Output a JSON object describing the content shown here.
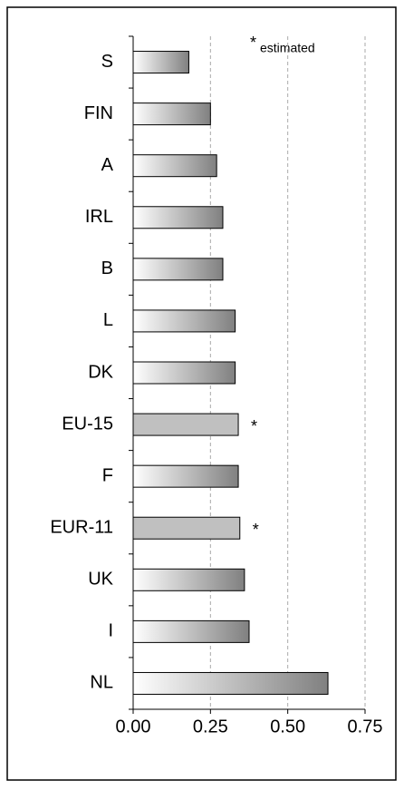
{
  "chart_data": {
    "type": "barh",
    "categories": [
      "S",
      "FIN",
      "A",
      "IRL",
      "B",
      "L",
      "DK",
      "EU-15",
      "F",
      "EUR-11",
      "UK",
      "I",
      "NL"
    ],
    "values": [
      0.18,
      0.25,
      0.27,
      0.29,
      0.29,
      0.33,
      0.33,
      0.34,
      0.34,
      0.345,
      0.36,
      0.375,
      0.63
    ],
    "markers": [
      null,
      null,
      null,
      null,
      null,
      null,
      null,
      "*",
      null,
      "*",
      null,
      null,
      null
    ],
    "note_marker": "*",
    "note": "estimated",
    "color": "#808080",
    "marked_color": "#c0c0c0",
    "xlim": [
      0,
      0.75
    ],
    "xticks": [
      {
        "value": 0,
        "label": "0.00"
      },
      {
        "value": 0.25,
        "label": "0.25"
      },
      {
        "value": 0.5,
        "label": "0.50"
      },
      {
        "value": 0.75,
        "label": "0.75"
      }
    ],
    "grid": true
  }
}
